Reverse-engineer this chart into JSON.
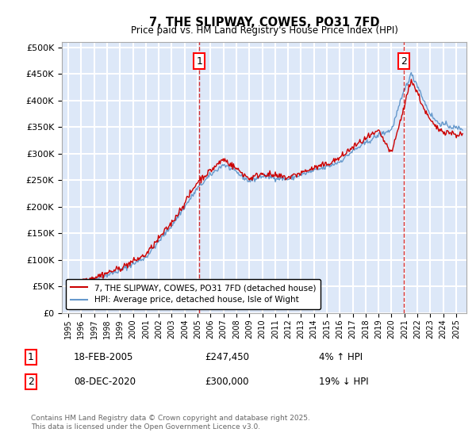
{
  "title": "7, THE SLIPWAY, COWES, PO31 7FD",
  "subtitle": "Price paid vs. HM Land Registry's House Price Index (HPI)",
  "yticks": [
    0,
    50000,
    100000,
    150000,
    200000,
    250000,
    300000,
    350000,
    400000,
    450000,
    500000
  ],
  "plot_bg": "#dde8f8",
  "grid_color": "#ffffff",
  "hpi_color": "#6699cc",
  "price_color": "#cc0000",
  "marker1_x": 2005.125,
  "marker2_x": 2020.93,
  "marker1_label": "1",
  "marker2_label": "2",
  "legend_line1": "7, THE SLIPWAY, COWES, PO31 7FD (detached house)",
  "legend_line2": "HPI: Average price, detached house, Isle of Wight",
  "annotation1_num": "1",
  "annotation1_date": "18-FEB-2005",
  "annotation1_price": "£247,450",
  "annotation1_hpi": "4% ↑ HPI",
  "annotation2_num": "2",
  "annotation2_date": "08-DEC-2020",
  "annotation2_price": "£300,000",
  "annotation2_hpi": "19% ↓ HPI",
  "footer": "Contains HM Land Registry data © Crown copyright and database right 2025.\nThis data is licensed under the Open Government Licence v3.0."
}
